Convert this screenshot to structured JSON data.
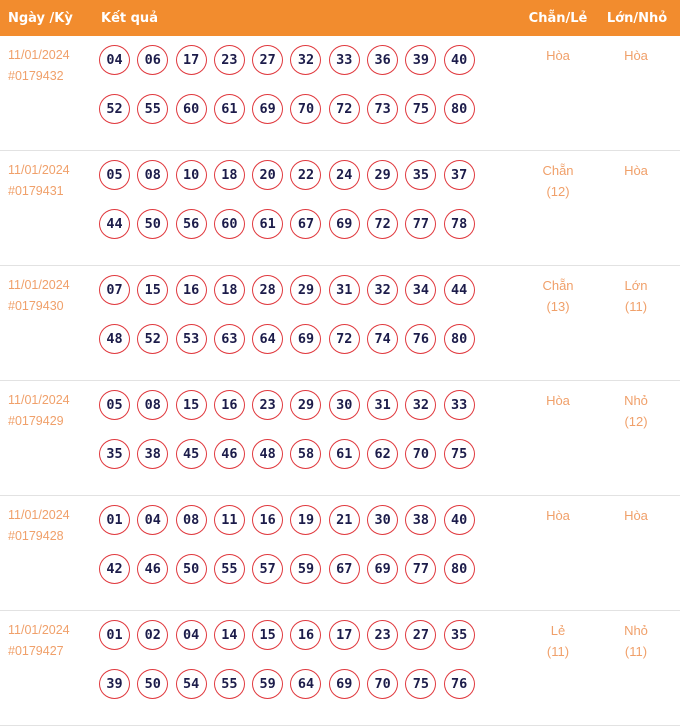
{
  "header": {
    "date": "Ngày /Kỳ",
    "result": "Kết quả",
    "chan_le": "Chẵn/Lẻ",
    "lon_nho": "Lớn/Nhỏ"
  },
  "colors": {
    "header_bg": "#f28c2e",
    "accent_text": "#f0a06a",
    "ball_border": "#e0393e",
    "ball_text": "#1c1c4a"
  },
  "rows": [
    {
      "date": "11/01/2024",
      "draw": "#0179432",
      "numbers": [
        "04",
        "06",
        "17",
        "23",
        "27",
        "32",
        "33",
        "36",
        "39",
        "40",
        "52",
        "55",
        "60",
        "61",
        "69",
        "70",
        "72",
        "73",
        "75",
        "80"
      ],
      "chan_le": "Hòa",
      "chan_le_count": "",
      "lon_nho": "Hòa",
      "lon_nho_count": ""
    },
    {
      "date": "11/01/2024",
      "draw": "#0179431",
      "numbers": [
        "05",
        "08",
        "10",
        "18",
        "20",
        "22",
        "24",
        "29",
        "35",
        "37",
        "44",
        "50",
        "56",
        "60",
        "61",
        "67",
        "69",
        "72",
        "77",
        "78"
      ],
      "chan_le": "Chẵn",
      "chan_le_count": "(12)",
      "lon_nho": "Hòa",
      "lon_nho_count": ""
    },
    {
      "date": "11/01/2024",
      "draw": "#0179430",
      "numbers": [
        "07",
        "15",
        "16",
        "18",
        "28",
        "29",
        "31",
        "32",
        "34",
        "44",
        "48",
        "52",
        "53",
        "63",
        "64",
        "69",
        "72",
        "74",
        "76",
        "80"
      ],
      "chan_le": "Chẵn",
      "chan_le_count": "(13)",
      "lon_nho": "Lớn",
      "lon_nho_count": "(11)"
    },
    {
      "date": "11/01/2024",
      "draw": "#0179429",
      "numbers": [
        "05",
        "08",
        "15",
        "16",
        "23",
        "29",
        "30",
        "31",
        "32",
        "33",
        "35",
        "38",
        "45",
        "46",
        "48",
        "58",
        "61",
        "62",
        "70",
        "75"
      ],
      "chan_le": "Hòa",
      "chan_le_count": "",
      "lon_nho": "Nhỏ",
      "lon_nho_count": "(12)"
    },
    {
      "date": "11/01/2024",
      "draw": "#0179428",
      "numbers": [
        "01",
        "04",
        "08",
        "11",
        "16",
        "19",
        "21",
        "30",
        "38",
        "40",
        "42",
        "46",
        "50",
        "55",
        "57",
        "59",
        "67",
        "69",
        "77",
        "80"
      ],
      "chan_le": "Hòa",
      "chan_le_count": "",
      "lon_nho": "Hòa",
      "lon_nho_count": ""
    },
    {
      "date": "11/01/2024",
      "draw": "#0179427",
      "numbers": [
        "01",
        "02",
        "04",
        "14",
        "15",
        "16",
        "17",
        "23",
        "27",
        "35",
        "39",
        "50",
        "54",
        "55",
        "59",
        "64",
        "69",
        "70",
        "75",
        "76"
      ],
      "chan_le": "Lẻ",
      "chan_le_count": "(11)",
      "lon_nho": "Nhỏ",
      "lon_nho_count": "(11)"
    }
  ]
}
